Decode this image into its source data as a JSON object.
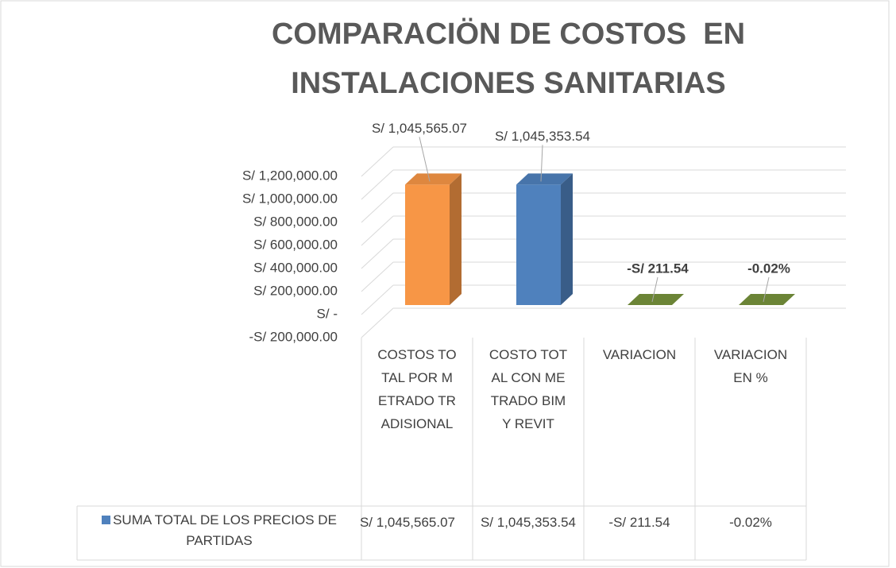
{
  "chart_data": {
    "type": "bar3d",
    "title": [
      "COMPARACIÖN DE COSTOS  EN",
      "INSTALACIONES SANITARIAS"
    ],
    "categories": [
      "COSTOS TOTAL POR METRADO TRADISIONAL",
      "COSTO TOTAL CON METRADO BIM Y REVIT",
      "VARIACION",
      "VARIACION EN %"
    ],
    "series": [
      {
        "name": "SUMA TOTAL DE LOS PRECIOS DE PARTIDAS",
        "color": "#4F81BD",
        "values": [
          1045565.07,
          1045353.54,
          -211.54,
          -0.02
        ],
        "value_labels": [
          "S/ 1,045,565.07",
          "S/ 1,045,353.54",
          "-S/ 211.54",
          "-0.02%"
        ],
        "colors": [
          "#F79646",
          "#4F81BD",
          "#77933C",
          "#77933C"
        ]
      }
    ],
    "ylim": [
      -200000,
      1200000
    ],
    "yticks": [
      {
        "value": -200000,
        "label": "-S/ 200,000.00"
      },
      {
        "value": 0,
        "label": "S/ -"
      },
      {
        "value": 200000,
        "label": "S/ 200,000.00"
      },
      {
        "value": 400000,
        "label": "S/ 400,000.00"
      },
      {
        "value": 600000,
        "label": "S/ 600,000.00"
      },
      {
        "value": 800000,
        "label": "S/ 800,000.00"
      },
      {
        "value": 1000000,
        "label": "S/ 1,000,000.00"
      },
      {
        "value": 1200000,
        "label": "S/ 1,200,000.00"
      }
    ],
    "grid": true,
    "data_table": true
  }
}
